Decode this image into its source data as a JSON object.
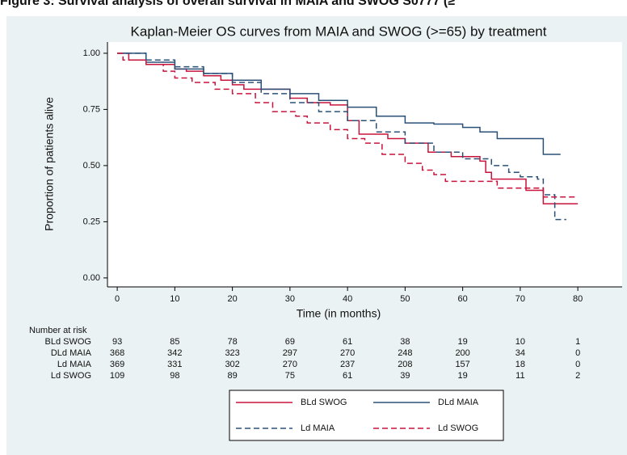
{
  "header": "Figure 3: Survival analysis of overall survival in MAIA and SWOG S0777 (≥",
  "chart_data": {
    "type": "line",
    "step": true,
    "title": "Kaplan-Meier OS curves from MAIA and SWOG (>=65) by treatment",
    "x_label": "Time (in months)",
    "y_label": "Proportion of patients alive",
    "xlim": [
      -1.7,
      87.7
    ],
    "ylim": [
      -0.04,
      1.05
    ],
    "xticks": [
      0,
      10,
      20,
      30,
      40,
      50,
      60,
      70,
      80
    ],
    "yticks": [
      {
        "value": 0,
        "label": "0.00"
      },
      {
        "value": 0.25,
        "label": "0.25"
      },
      {
        "value": 0.5,
        "label": "0.50"
      },
      {
        "value": 0.75,
        "label": "0.75"
      },
      {
        "value": 1,
        "label": "1.00"
      }
    ],
    "series": [
      {
        "name": "BLd SWOG",
        "color": "#c8143c",
        "dash": false,
        "x": [
          0,
          2,
          5,
          10,
          12,
          15,
          18,
          20,
          22,
          28,
          30,
          33,
          37,
          40,
          42,
          47,
          50,
          54,
          58,
          63,
          64,
          65,
          71,
          74,
          80
        ],
        "values": [
          1.0,
          0.97,
          0.95,
          0.93,
          0.92,
          0.9,
          0.88,
          0.86,
          0.84,
          0.84,
          0.8,
          0.78,
          0.77,
          0.7,
          0.64,
          0.62,
          0.6,
          0.56,
          0.54,
          0.52,
          0.47,
          0.44,
          0.39,
          0.33,
          0.33
        ]
      },
      {
        "name": "DLd MAIA",
        "color": "#2a5078",
        "dash": false,
        "x": [
          0,
          5,
          10,
          15,
          20,
          25,
          30,
          35,
          40,
          45,
          50,
          55,
          60,
          63,
          66,
          70,
          74,
          77
        ],
        "values": [
          1.0,
          0.96,
          0.93,
          0.91,
          0.88,
          0.84,
          0.82,
          0.79,
          0.76,
          0.72,
          0.69,
          0.685,
          0.67,
          0.65,
          0.62,
          0.62,
          0.55,
          0.55
        ]
      },
      {
        "name": "Ld MAIA",
        "color": "#2a5078",
        "dash": true,
        "x": [
          0,
          5,
          10,
          15,
          20,
          25,
          30,
          35,
          40,
          45,
          50,
          55,
          60,
          65,
          68,
          70,
          73,
          74,
          76,
          78
        ],
        "values": [
          1.0,
          0.97,
          0.94,
          0.91,
          0.87,
          0.82,
          0.78,
          0.74,
          0.7,
          0.65,
          0.6,
          0.56,
          0.53,
          0.5,
          0.47,
          0.45,
          0.44,
          0.37,
          0.26,
          0.26
        ]
      },
      {
        "name": "Ld SWOG",
        "color": "#c8143c",
        "dash": true,
        "x": [
          0,
          1,
          5,
          8,
          10,
          13,
          17,
          20,
          24,
          27,
          31,
          33,
          37,
          40,
          43,
          46,
          50,
          53,
          55,
          57,
          62,
          66,
          70,
          74,
          80
        ],
        "values": [
          1.0,
          0.97,
          0.95,
          0.92,
          0.89,
          0.87,
          0.84,
          0.82,
          0.78,
          0.74,
          0.72,
          0.69,
          0.66,
          0.62,
          0.6,
          0.55,
          0.51,
          0.48,
          0.46,
          0.43,
          0.43,
          0.4,
          0.4,
          0.36,
          0.36
        ]
      }
    ],
    "risk_table": {
      "title": "Number at risk",
      "times": [
        0,
        10,
        20,
        30,
        40,
        50,
        60,
        70,
        80
      ],
      "rows": [
        {
          "name": "BLd SWOG",
          "values": [
            93,
            85,
            78,
            69,
            61,
            38,
            19,
            10,
            1
          ]
        },
        {
          "name": "DLd MAIA",
          "values": [
            368,
            342,
            323,
            297,
            270,
            248,
            200,
            34,
            0
          ]
        },
        {
          "name": "Ld MAIA",
          "values": [
            369,
            331,
            302,
            270,
            237,
            208,
            157,
            18,
            0
          ]
        },
        {
          "name": "Ld SWOG",
          "values": [
            109,
            98,
            89,
            75,
            61,
            39,
            19,
            11,
            2
          ]
        }
      ]
    }
  }
}
